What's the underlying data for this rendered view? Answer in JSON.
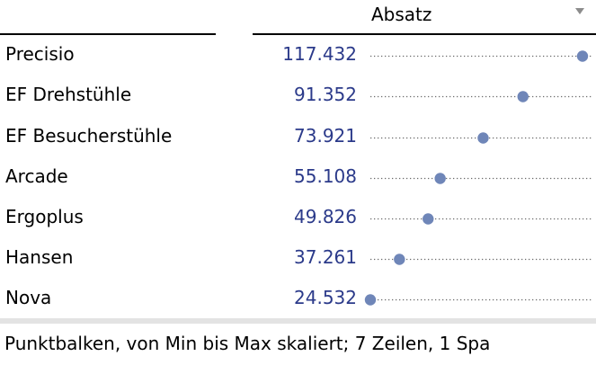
{
  "chart_data": {
    "type": "dot",
    "header": "Absatz",
    "categories": [
      "Precisio",
      "EF Drehstühle",
      "EF Besucherstühle",
      "Arcade",
      "Ergoplus",
      "Hansen",
      "Nova"
    ],
    "values": [
      117432,
      91352,
      73921,
      55108,
      49826,
      37261,
      24532
    ],
    "value_labels": [
      "117.432",
      "91.352",
      "73.921",
      "55.108",
      "49.826",
      "37.261",
      "24.532"
    ],
    "scale": "min-to-max",
    "dot_color": "#6f86b8",
    "value_color": "#2b3a8a"
  },
  "footer": {
    "text": "Punktbalken, von Min bis Max skaliert; 7 Zeilen, 1 Spa"
  }
}
